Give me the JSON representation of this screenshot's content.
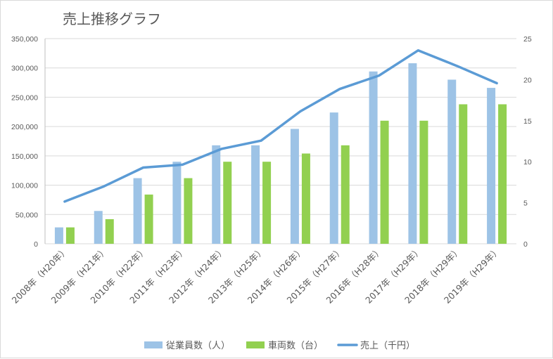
{
  "chart_data": {
    "type": "bar",
    "title": "売上推移グラフ",
    "categories": [
      "2008年（H20年）",
      "2009年（H21年）",
      "2010年（H22年）",
      "2011年（H23年）",
      "2012年（H24年）",
      "2013年（H25年）",
      "2014年（H26年）",
      "2015年（H27年）",
      "2016年（H28年）",
      "2017年（H29年）",
      "2018年（H29年）",
      "2019年（H29年）"
    ],
    "series": [
      {
        "name": "従業員数（人）",
        "type": "bar",
        "axis": "right",
        "color": "#9dc3e6",
        "values": [
          2,
          4,
          8,
          10,
          12,
          12,
          14,
          16,
          21,
          22,
          20,
          19
        ]
      },
      {
        "name": "車両数（台）",
        "type": "bar",
        "axis": "right",
        "color": "#92d050",
        "values": [
          2,
          3,
          6,
          8,
          10,
          10,
          11,
          12,
          15,
          15,
          17,
          17
        ]
      },
      {
        "name": "売上（千円）",
        "type": "line",
        "axis": "left",
        "color": "#5b9bd5",
        "values": [
          72000,
          98000,
          130000,
          135000,
          162000,
          176000,
          226000,
          264000,
          287000,
          330000,
          303000,
          274000
        ]
      }
    ],
    "y_left": {
      "min": 0,
      "max": 350000,
      "ticks": [
        "0",
        "50,000",
        "100,000",
        "150,000",
        "200,000",
        "250,000",
        "300,000",
        "350,000"
      ]
    },
    "y_right": {
      "min": 0,
      "max": 25,
      "ticks": [
        "0",
        "5",
        "10",
        "15",
        "20",
        "25"
      ]
    },
    "grid": true,
    "legend_position": "bottom"
  }
}
